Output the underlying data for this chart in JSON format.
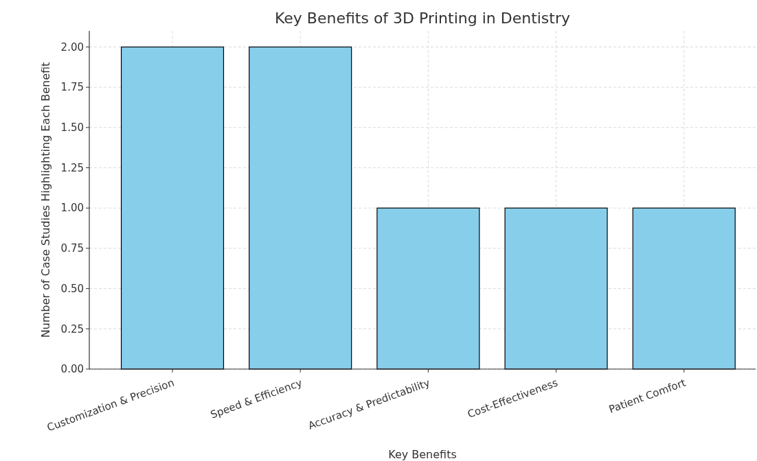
{
  "chart_data": {
    "type": "bar",
    "title": "Key Benefits of 3D Printing in Dentistry",
    "xlabel": "Key Benefits",
    "ylabel": "Number of Case Studies Highlighting Each Benefit",
    "categories": [
      "Customization & Precision",
      "Speed & Efficiency",
      "Accuracy & Predictability",
      "Cost-Effectiveness",
      "Patient Comfort"
    ],
    "values": [
      2,
      2,
      1,
      1,
      1
    ],
    "color": "#87ceeb",
    "ylim": [
      0,
      2.1
    ],
    "yticks": [
      {
        "value": 0,
        "label": "0.00"
      },
      {
        "value": 0.25,
        "label": "0.25"
      },
      {
        "value": 0.5,
        "label": "0.50"
      },
      {
        "value": 0.75,
        "label": "0.75"
      },
      {
        "value": 1,
        "label": "1.00"
      },
      {
        "value": 1.25,
        "label": "1.25"
      },
      {
        "value": 1.5,
        "label": "1.50"
      },
      {
        "value": 1.75,
        "label": "1.75"
      },
      {
        "value": 2,
        "label": "2.00"
      }
    ],
    "grid": true
  }
}
